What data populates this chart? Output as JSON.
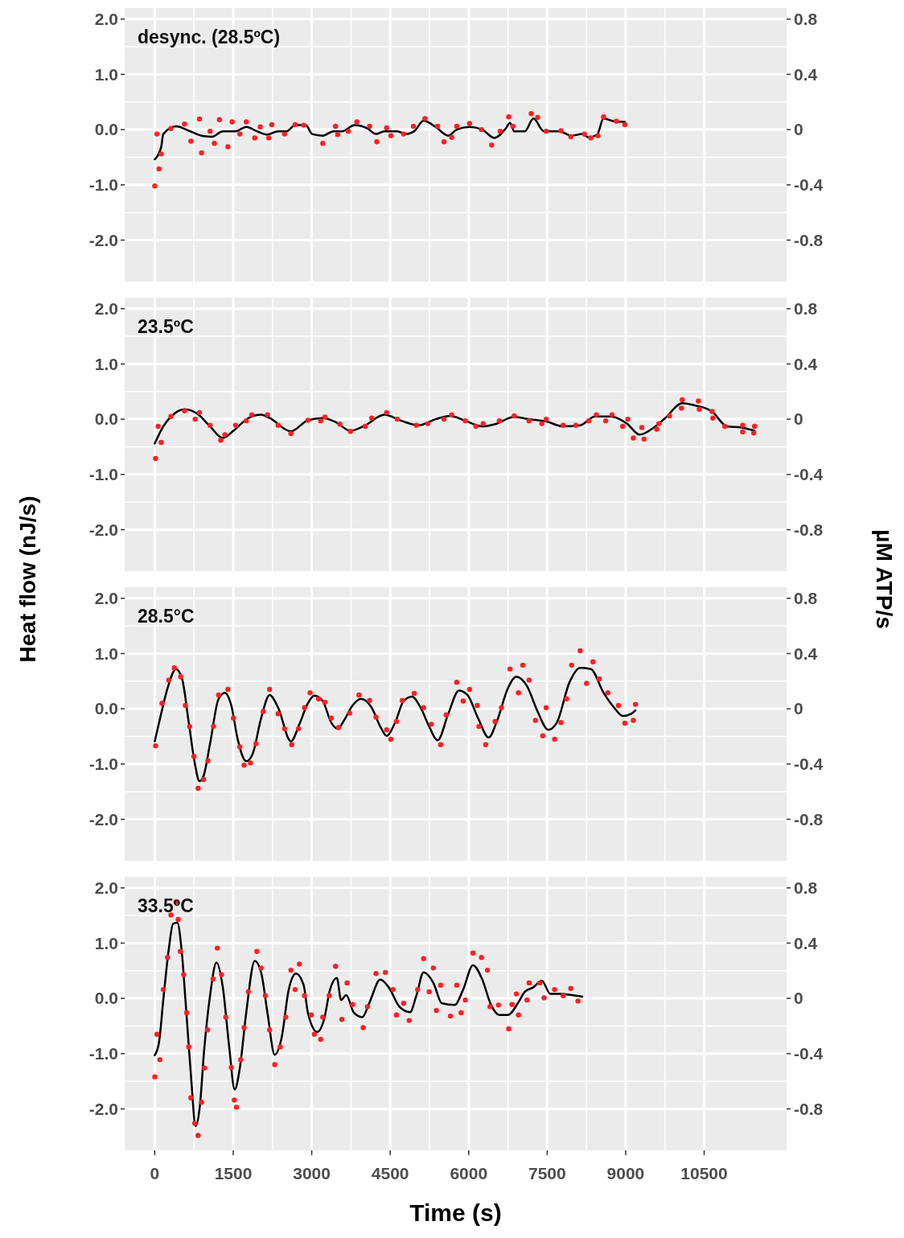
{
  "chart_data": [
    {
      "type": "line",
      "title": "desync. (28.5ºC)",
      "xlim": [
        -575,
        12075
      ],
      "xticks": [
        0,
        1500,
        3000,
        4500,
        6000,
        7500,
        9000,
        10500
      ],
      "ylim": [
        -2.75,
        2.2
      ],
      "yticks": [
        {
          "value": -2,
          "label": "-2.0"
        },
        {
          "value": -1,
          "label": "-1.0"
        },
        {
          "value": 0,
          "label": "0.0"
        },
        {
          "value": 1,
          "label": "1.0"
        },
        {
          "value": 2,
          "label": "2.0"
        }
      ],
      "y2lim": [
        -1.1,
        0.88
      ],
      "y2ticks": [
        -0.8,
        -0.4,
        0,
        0.4,
        0.8
      ],
      "grid": true,
      "tick_labels": "y",
      "series": [
        {
          "color": "#000000",
          "marker": "none",
          "line_style": "solid",
          "x": [
            0,
            122,
            163,
            407,
            650,
            894,
            1098,
            1301,
            1545,
            1748,
            1951,
            2154,
            2358,
            2520,
            2683,
            2886,
            3008,
            3211,
            3415,
            3577,
            3821,
            4065,
            4228,
            4390,
            4634,
            4797,
            4959,
            5138,
            5366,
            5610,
            5772,
            6016,
            6260,
            6488,
            6707,
            6789,
            6870,
            7073,
            7236,
            7439,
            7724,
            7967,
            8171,
            8293,
            8455,
            8577,
            8780,
            8984
          ],
          "values": [
            -0.54,
            -0.32,
            -0.08,
            0.06,
            -0.02,
            -0.11,
            -0.13,
            -0.03,
            -0.03,
            0.05,
            -0.03,
            -0.09,
            -0.03,
            -0.03,
            0.08,
            0.08,
            -0.08,
            -0.11,
            -0.03,
            -0.03,
            0.08,
            0.02,
            -0.08,
            -0.03,
            -0.03,
            -0.08,
            -0.03,
            0.16,
            0.05,
            -0.11,
            0,
            0.05,
            0,
            -0.15,
            0.02,
            0.12,
            -0.03,
            -0.03,
            0.2,
            -0.03,
            -0.03,
            -0.11,
            -0.08,
            -0.14,
            -0.09,
            0.2,
            0.15,
            0.14
          ]
        },
        {
          "type": "scatter",
          "color": "#ff2020",
          "marker": "circle",
          "x": [
            0,
            41,
            81,
            122,
            309,
            569,
            691,
            854,
            894,
            1057,
            1138,
            1236,
            1398,
            1480,
            1626,
            1748,
            1911,
            2016,
            2179,
            2236,
            2480,
            2683,
            2846,
            3211,
            3455,
            3496,
            3699,
            3862,
            4106,
            4244,
            4431,
            4512,
            4756,
            4943,
            5163,
            5406,
            5528,
            5675,
            5772,
            6016,
            6244,
            6439,
            6602,
            6764,
            6845,
            7195,
            7317,
            7480,
            7764,
            7951,
            8211,
            8333,
            8471,
            8577,
            8821,
            8984
          ],
          "values": [
            -1.02,
            -0.08,
            -0.71,
            -0.44,
            0.02,
            0.1,
            -0.21,
            0.19,
            -0.42,
            -0.03,
            -0.25,
            0.18,
            -0.31,
            0.14,
            -0.08,
            0.14,
            -0.15,
            0.05,
            -0.15,
            0.09,
            -0.08,
            0.09,
            0.08,
            -0.25,
            0.06,
            -0.09,
            -0.03,
            0.14,
            0.06,
            -0.22,
            0.03,
            -0.11,
            -0.08,
            0.06,
            0.2,
            0.06,
            -0.22,
            -0.14,
            0.06,
            0.11,
            0,
            -0.28,
            -0.03,
            0.23,
            0.06,
            0.29,
            0.22,
            -0.03,
            -0.02,
            -0.13,
            -0.08,
            -0.15,
            -0.11,
            0.23,
            0.15,
            0.09
          ]
        }
      ]
    },
    {
      "type": "line",
      "title": "23.5ºC",
      "xlim": [
        -575,
        12075
      ],
      "xticks": [
        0,
        1500,
        3000,
        4500,
        6000,
        7500,
        9000,
        10500
      ],
      "ylim": [
        -2.75,
        2.2
      ],
      "yticks": [
        {
          "value": -2,
          "label": "-2.0"
        },
        {
          "value": -1,
          "label": "-1.0"
        },
        {
          "value": 0,
          "label": "0.0"
        },
        {
          "value": 1,
          "label": "1.0"
        },
        {
          "value": 2,
          "label": "2.0"
        }
      ],
      "y2lim": [
        -1.1,
        0.88
      ],
      "y2ticks": [
        -0.8,
        -0.4,
        0,
        0.4,
        0.8
      ],
      "grid": true,
      "tick_labels": "y",
      "series": [
        {
          "color": "#000000",
          "marker": "none",
          "line_style": "solid",
          "x": [
            0,
            163,
            325,
            569,
            813,
            1057,
            1301,
            1504,
            1789,
            2033,
            2195,
            2602,
            2927,
            3211,
            3455,
            3740,
            4024,
            4390,
            4715,
            5041,
            5366,
            5650,
            5935,
            6260,
            6504,
            6870,
            7154,
            7480,
            7805,
            8130,
            8415,
            8699,
            9024,
            9268,
            9512,
            9756,
            10081,
            10325,
            10650,
            10935,
            11219,
            11463
          ],
          "values": [
            -0.44,
            -0.13,
            0.06,
            0.18,
            0.1,
            -0.13,
            -0.34,
            -0.21,
            0.02,
            0.08,
            0.02,
            -0.22,
            -0.02,
            0.02,
            -0.05,
            -0.21,
            -0.11,
            0.08,
            -0.03,
            -0.11,
            0,
            0.06,
            -0.03,
            -0.13,
            -0.09,
            0.04,
            0,
            -0.04,
            -0.13,
            -0.11,
            0.05,
            0.05,
            -0.08,
            -0.28,
            -0.17,
            0.02,
            0.29,
            0.25,
            0.14,
            -0.13,
            -0.15,
            -0.21
          ]
        },
        {
          "type": "scatter",
          "color": "#ff2020",
          "marker": "circle",
          "x": [
            16,
            65,
            122,
            309,
            569,
            772,
            854,
            1057,
            1260,
            1341,
            1545,
            1748,
            1854,
            2154,
            2358,
            2602,
            2927,
            3171,
            3252,
            3537,
            3740,
            4024,
            4146,
            4431,
            4634,
            4999,
            5219,
            5528,
            5675,
            5935,
            6138,
            6277,
            6585,
            6870,
            7154,
            7398,
            7480,
            7805,
            8049,
            8293,
            8439,
            8618,
            8740,
            8943,
            9041,
            9146,
            9309,
            9350,
            9593,
            9634,
            9837,
            10065,
            10081,
            10390,
            10406,
            10650,
            10666,
            10894,
            11236,
            11236,
            11447,
            11463
          ],
          "values": [
            -0.71,
            -0.13,
            -0.42,
            0.05,
            0.15,
            0,
            0.12,
            -0.11,
            -0.38,
            -0.28,
            -0.11,
            -0.03,
            0.08,
            0.08,
            -0.11,
            -0.26,
            -0.02,
            -0.03,
            0.04,
            -0.09,
            -0.22,
            -0.13,
            0.02,
            0.12,
            0,
            -0.11,
            -0.08,
            0,
            0.08,
            -0.03,
            -0.13,
            -0.08,
            -0.03,
            0.06,
            -0.03,
            -0.08,
            0,
            -0.11,
            -0.11,
            -0.03,
            0.08,
            -0.03,
            0.08,
            -0.13,
            0,
            -0.34,
            -0.15,
            -0.36,
            -0.18,
            -0.08,
            0.06,
            0.2,
            0.35,
            0.33,
            0.18,
            0.14,
            0.02,
            -0.13,
            -0.11,
            -0.23,
            -0.25,
            -0.13
          ]
        }
      ]
    },
    {
      "type": "line",
      "title": "28.5°C",
      "xlim": [
        -575,
        12075
      ],
      "xticks": [
        0,
        1500,
        3000,
        4500,
        6000,
        7500,
        9000,
        10500
      ],
      "ylim": [
        -2.75,
        2.2
      ],
      "yticks": [
        {
          "value": -2,
          "label": "-2.0"
        },
        {
          "value": -1,
          "label": "-1.0"
        },
        {
          "value": 0,
          "label": "0.0"
        },
        {
          "value": 1,
          "label": "1.0"
        },
        {
          "value": 2,
          "label": "2.0"
        }
      ],
      "y2lim": [
        -1.1,
        0.88
      ],
      "y2ticks": [
        -0.8,
        -0.4,
        0,
        0.4,
        0.8
      ],
      "grid": true,
      "tick_labels": "y",
      "ylabel": "Heat flow (nJ/s)",
      "y2label": "µM ATP/s",
      "series": [
        {
          "color": "#000000",
          "marker": "none",
          "line_style": "solid",
          "x": [
            0,
            122,
            244,
            407,
            528,
            650,
            772,
            854,
            935,
            1057,
            1220,
            1341,
            1463,
            1585,
            1748,
            1870,
            2033,
            2195,
            2358,
            2602,
            2764,
            2927,
            3049,
            3211,
            3374,
            3496,
            3618,
            3780,
            3943,
            4146,
            4309,
            4431,
            4593,
            4756,
            4918,
            5081,
            5244,
            5406,
            5610,
            5813,
            5976,
            6179,
            6382,
            6545,
            6748,
            6911,
            7114,
            7317,
            7520,
            7683,
            7927,
            8130,
            8333,
            8577,
            8780,
            8943,
            9106,
            9187
          ],
          "values": [
            -0.59,
            -0.09,
            0.37,
            0.72,
            0.52,
            -0.25,
            -1.02,
            -1.31,
            -1.21,
            -0.63,
            0.18,
            0.29,
            0.06,
            -0.55,
            -0.95,
            -0.82,
            -0.17,
            0.25,
            0.02,
            -0.59,
            -0.28,
            0.1,
            0.24,
            0.14,
            -0.25,
            -0.36,
            -0.21,
            0.06,
            0.18,
            0.02,
            -0.32,
            -0.49,
            -0.25,
            0.14,
            0.22,
            0.02,
            -0.32,
            -0.57,
            -0.09,
            0.33,
            0.25,
            -0.17,
            -0.52,
            -0.21,
            0.37,
            0.58,
            0.41,
            -0.05,
            -0.38,
            -0.25,
            0.48,
            0.74,
            0.72,
            0.29,
            0.02,
            -0.13,
            -0.09,
            -0.03
          ]
        },
        {
          "type": "scatter",
          "color": "#ff2020",
          "marker": "circle",
          "x": [
            16,
            138,
            268,
            374,
            496,
            585,
            667,
            748,
            829,
            935,
            1016,
            1122,
            1220,
            1398,
            1504,
            1626,
            1707,
            1829,
            1935,
            2073,
            2195,
            2358,
            2480,
            2618,
            2748,
            2862,
            2968,
            3130,
            3252,
            3374,
            3512,
            3724,
            3902,
            4106,
            4228,
            4431,
            4512,
            4618,
            4731,
            4959,
            5138,
            5285,
            5463,
            5569,
            5772,
            5894,
            6016,
            6163,
            6195,
            6325,
            6504,
            6626,
            6789,
            6951,
            7033,
            7154,
            7276,
            7415,
            7480,
            7642,
            7764,
            7870,
            7967,
            8130,
            8252,
            8374,
            8496,
            8659,
            8862,
            8984,
            9146,
            9187
          ],
          "values": [
            -0.67,
            0.1,
            0.52,
            0.74,
            0.58,
            0.06,
            -0.32,
            -0.86,
            -1.44,
            -1.28,
            -0.94,
            -0.32,
            0.25,
            0.35,
            -0.17,
            -0.69,
            -1.02,
            -0.98,
            -0.63,
            -0.05,
            0.35,
            -0.09,
            -0.36,
            -0.65,
            -0.36,
            0.02,
            0.29,
            0.18,
            0.12,
            -0.17,
            -0.34,
            -0.08,
            0.25,
            0.15,
            -0.15,
            -0.38,
            -0.55,
            -0.23,
            0.15,
            0.28,
            0.02,
            -0.28,
            -0.65,
            -0.11,
            0.48,
            0.14,
            0.35,
            0.06,
            -0.32,
            -0.65,
            -0.23,
            0.02,
            0.72,
            0.29,
            0.79,
            0.52,
            -0.21,
            -0.49,
            0.02,
            -0.55,
            -0.25,
            0.18,
            0.79,
            1.05,
            0.46,
            0.85,
            0.54,
            0.29,
            0.06,
            -0.26,
            -0.21,
            0.08
          ]
        }
      ]
    },
    {
      "type": "line",
      "title": "33.5ºC",
      "xlabel": "Time (s)",
      "xlim": [
        -575,
        12075
      ],
      "xticks": [
        0,
        1500,
        3000,
        4500,
        6000,
        7500,
        9000,
        10500
      ],
      "ylim": [
        -2.75,
        2.2
      ],
      "yticks": [
        {
          "value": -2,
          "label": "-2.0"
        },
        {
          "value": -1,
          "label": "-1.0"
        },
        {
          "value": 0,
          "label": "0.0"
        },
        {
          "value": 1,
          "label": "1.0"
        },
        {
          "value": 2,
          "label": "2.0"
        }
      ],
      "y2lim": [
        -1.1,
        0.88
      ],
      "y2ticks": [
        -0.8,
        -0.4,
        0,
        0.4,
        0.8
      ],
      "grid": true,
      "series": [
        {
          "color": "#000000",
          "marker": "none",
          "line_style": "solid",
          "x": [
            0,
            81,
            163,
            268,
            350,
            431,
            512,
            593,
            699,
            780,
            862,
            943,
            1057,
            1179,
            1301,
            1423,
            1528,
            1626,
            1748,
            1911,
            2033,
            2154,
            2293,
            2423,
            2561,
            2699,
            2846,
            2927,
            3106,
            3236,
            3350,
            3480,
            3561,
            3659,
            3805,
            3967,
            4106,
            4309,
            4472,
            4675,
            4878,
            5000,
            5138,
            5325,
            5488,
            5732,
            5894,
            6081,
            6260,
            6423,
            6585,
            6748,
            6951,
            7073,
            7236,
            7398,
            7561,
            7724,
            7967,
            8171
          ],
          "values": [
            -1.03,
            -0.8,
            -0.03,
            0.89,
            1.35,
            1.37,
            0.89,
            -0.11,
            -1.49,
            -2.31,
            -1.95,
            -0.95,
            0.05,
            0.65,
            0.2,
            -0.88,
            -1.65,
            -1.26,
            -0.26,
            0.68,
            0.47,
            -0.26,
            -1.02,
            -0.72,
            0.16,
            0.45,
            0.24,
            -0.26,
            -0.61,
            -0.38,
            0.16,
            0.37,
            -0.03,
            0.06,
            -0.26,
            -0.34,
            -0.07,
            0.34,
            0.2,
            -0.15,
            -0.25,
            0.05,
            0.47,
            0.28,
            -0.09,
            -0.12,
            0.16,
            0.6,
            0.34,
            -0.11,
            -0.3,
            -0.3,
            -0.07,
            0.12,
            0.2,
            0.32,
            0.08,
            0.08,
            0.06,
            0.03
          ]
        },
        {
          "type": "scatter",
          "color": "#ff2020",
          "marker": "circle",
          "x": [
            0,
            41,
            98,
            163,
            244,
            309,
            407,
            447,
            488,
            553,
            610,
            650,
            691,
            764,
            829,
            894,
            951,
            1008,
            1114,
            1195,
            1276,
            1358,
            1463,
            1520,
            1561,
            1642,
            1707,
            1789,
            1951,
            2033,
            2114,
            2195,
            2293,
            2398,
            2504,
            2602,
            2683,
            2764,
            2862,
            2992,
            3049,
            3171,
            3211,
            3333,
            3455,
            3577,
            3675,
            3780,
            3984,
            4065,
            4228,
            4407,
            4553,
            4618,
            4756,
            4862,
            5024,
            5138,
            5244,
            5325,
            5382,
            5463,
            5650,
            5772,
            5854,
            5935,
            6081,
            6244,
            6358,
            6407,
            6569,
            6764,
            6829,
            6911,
            6951,
            7114,
            7154,
            7358,
            7439,
            7642,
            7805,
            7951,
            8089
          ],
          "values": [
            -1.42,
            -0.65,
            -1.11,
            0.16,
            0.74,
            1.51,
            1.75,
            1.43,
            0.85,
            0.43,
            -0.26,
            -0.88,
            -1.8,
            -2.26,
            -2.48,
            -1.88,
            -1.26,
            -0.57,
            0.35,
            0.91,
            0.43,
            -0.34,
            -1.25,
            -1.84,
            -1.97,
            -1.11,
            -0.53,
            0.12,
            0.85,
            0.55,
            0.05,
            -0.57,
            -1.2,
            -0.88,
            -0.34,
            0.51,
            0.16,
            0.62,
            0.05,
            -0.3,
            -0.65,
            -0.74,
            -0.34,
            0.05,
            0.58,
            -0.38,
            0.28,
            -0.11,
            -0.53,
            -0.15,
            0.45,
            0.47,
            0.16,
            -0.3,
            -0.09,
            -0.4,
            0.16,
            0.72,
            0.12,
            0.55,
            -0.22,
            0.24,
            -0.32,
            0.24,
            -0.26,
            -0.03,
            0.82,
            0.74,
            0.51,
            -0.15,
            -0.12,
            -0.55,
            -0.11,
            0.08,
            -0.3,
            -0.03,
            0.28,
            0.28,
            0.01,
            0.16,
            0.05,
            0.18,
            -0.05
          ]
        }
      ]
    }
  ]
}
